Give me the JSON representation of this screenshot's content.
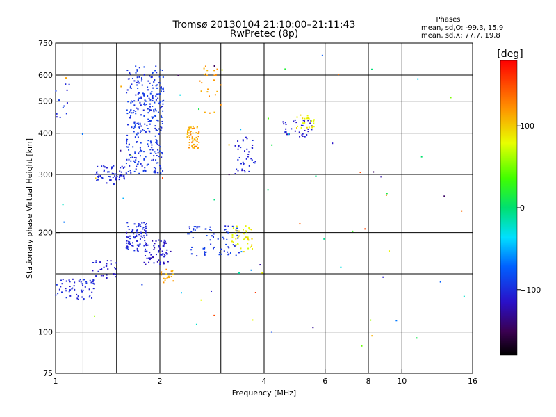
{
  "chart_data": {
    "type": "scatter",
    "title": "Tromsø 20130104 21:10:00–21:11:43",
    "subtitle": "RwPretec (8p)",
    "xlabel": "Frequency [MHz]",
    "ylabel": "Stationary phase Virtual Height [km]",
    "xscale": "log2",
    "yscale": "log",
    "xlim": [
      1,
      16
    ],
    "ylim": [
      75,
      750
    ],
    "x_ticks": [
      1,
      2,
      4,
      6,
      8,
      10,
      16
    ],
    "y_ticks": [
      75,
      100,
      200,
      300,
      400,
      500,
      600,
      750
    ],
    "x_grid": [
      1.2,
      1.5,
      2,
      3,
      4,
      6,
      8,
      10
    ],
    "y_grid": [
      100,
      150,
      200,
      300,
      400,
      500,
      600
    ],
    "grid": true,
    "phase_note": {
      "heading": "Phases",
      "line_o": "mean, sd,O: -99.3, 15.9",
      "line_x": "mean, sd,X:  77.7, 19.8"
    },
    "colorbar": {
      "label": "[deg]",
      "range": [
        -180,
        180
      ],
      "ticks": [
        100,
        0,
        -100
      ],
      "tick_labels": [
        "100",
        "0",
        "−100"
      ]
    },
    "clusters": [
      {
        "x": [
          1.6,
          2.05
        ],
        "y": [
          300,
          640
        ],
        "phase": [
          -105,
          -85
        ],
        "n": 320
      },
      {
        "x": [
          1.3,
          1.6
        ],
        "y": [
          280,
          320
        ],
        "phase": [
          -110,
          -95
        ],
        "n": 60
      },
      {
        "x": [
          1.0,
          1.1
        ],
        "y": [
          440,
          610
        ],
        "phase": [
          -110,
          -90
        ],
        "n": 12
      },
      {
        "x": [
          2.4,
          2.6
        ],
        "y": [
          360,
          420
        ],
        "phase": [
          100,
          130
        ],
        "n": 60
      },
      {
        "x": [
          2.6,
          3.0
        ],
        "y": [
          460,
          650
        ],
        "phase": [
          105,
          130
        ],
        "n": 25
      },
      {
        "x": [
          3.3,
          3.8
        ],
        "y": [
          300,
          390
        ],
        "phase": [
          -115,
          -95
        ],
        "n": 40
      },
      {
        "x": [
          4.5,
          5.5
        ],
        "y": [
          390,
          440
        ],
        "phase": [
          -120,
          -100
        ],
        "n": 35
      },
      {
        "x": [
          4.9,
          5.6
        ],
        "y": [
          415,
          455
        ],
        "phase": [
          75,
          100
        ],
        "n": 25
      },
      {
        "x": [
          1.6,
          1.85
        ],
        "y": [
          175,
          215
        ],
        "phase": [
          -110,
          -95
        ],
        "n": 80
      },
      {
        "x": [
          1.8,
          2.15
        ],
        "y": [
          160,
          190
        ],
        "phase": [
          -125,
          -100
        ],
        "n": 60
      },
      {
        "x": [
          2.4,
          3.4
        ],
        "y": [
          170,
          210
        ],
        "phase": [
          -105,
          -85
        ],
        "n": 70
      },
      {
        "x": [
          3.2,
          3.7
        ],
        "y": [
          175,
          210
        ],
        "phase": [
          70,
          100
        ],
        "n": 45
      },
      {
        "x": [
          2.0,
          2.2
        ],
        "y": [
          140,
          155
        ],
        "phase": [
          100,
          130
        ],
        "n": 20
      },
      {
        "x": [
          1.0,
          1.3
        ],
        "y": [
          125,
          145
        ],
        "phase": [
          -110,
          -95
        ],
        "n": 60
      },
      {
        "x": [
          1.25,
          1.5
        ],
        "y": [
          145,
          165
        ],
        "phase": [
          -120,
          -100
        ],
        "n": 30
      },
      {
        "x": [
          1.0,
          16.0
        ],
        "y": [
          90,
          700
        ],
        "phase": [
          -150,
          160
        ],
        "n": 70
      }
    ]
  }
}
